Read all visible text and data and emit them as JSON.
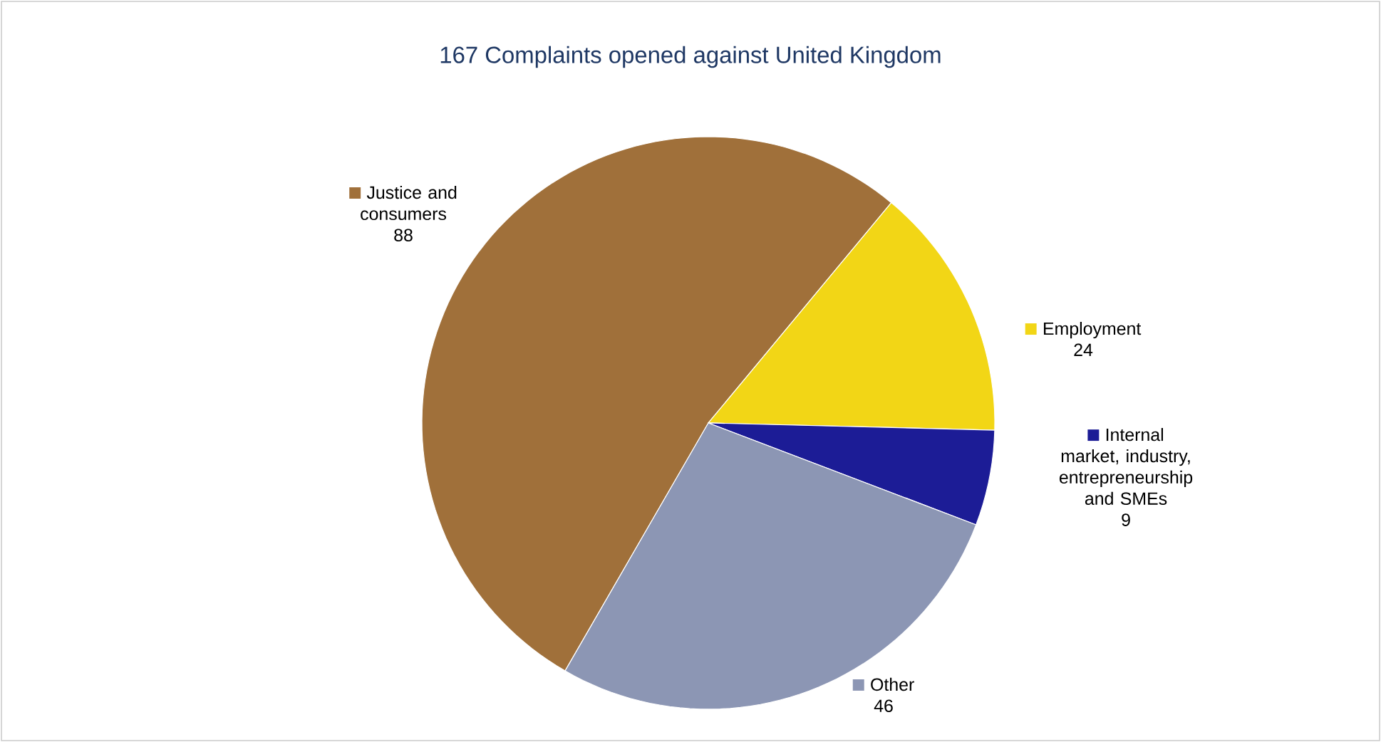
{
  "chart_data": {
    "type": "pie",
    "title": "167 Complaints opened against United Kingdom",
    "categories": [
      "Justice and consumers",
      "Employment",
      "Internal market, industry, entrepreneurship and SMEs",
      "Other"
    ],
    "values": [
      88,
      24,
      9,
      46
    ],
    "colors": [
      "#a0703a",
      "#f2d616",
      "#1c1c96",
      "#8c96b4"
    ],
    "data_labels": true,
    "legend": "right"
  }
}
